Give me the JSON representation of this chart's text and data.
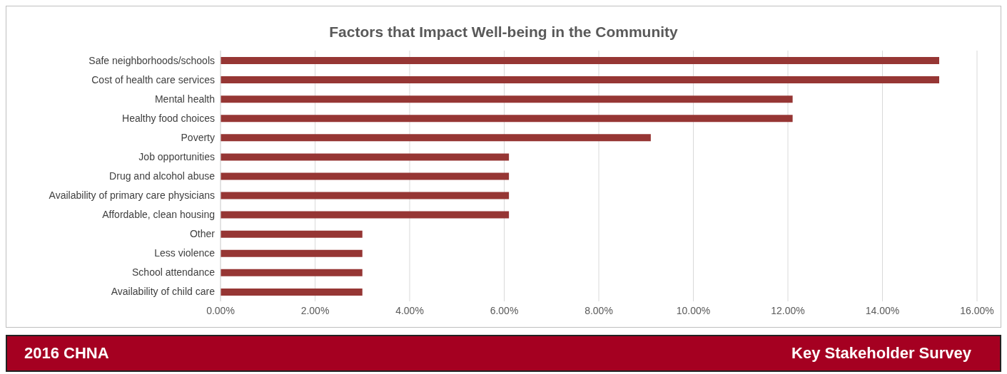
{
  "chart_data": {
    "type": "bar",
    "orientation": "horizontal",
    "title": "Factors that Impact Well-being in the Community",
    "categories": [
      "Safe neighborhoods/schools",
      "Cost of health care services",
      "Mental health",
      "Healthy food choices",
      "Poverty",
      "Job opportunities",
      "Drug and alcohol abuse",
      "Availability of primary care physicians",
      "Affordable, clean housing",
      "Other",
      "Less violence",
      "School attendance",
      "Availability of child care"
    ],
    "values": [
      15.2,
      15.2,
      12.1,
      12.1,
      9.1,
      6.1,
      6.1,
      6.1,
      6.1,
      3.0,
      3.0,
      3.0,
      3.0
    ],
    "color": "#963634",
    "xlim": [
      0,
      16
    ],
    "xticks": [
      {
        "value": 0,
        "label": "0.00%"
      },
      {
        "value": 2,
        "label": "2.00%"
      },
      {
        "value": 4,
        "label": "4.00%"
      },
      {
        "value": 6,
        "label": "6.00%"
      },
      {
        "value": 8,
        "label": "8.00%"
      },
      {
        "value": 10,
        "label": "10.00%"
      },
      {
        "value": 12,
        "label": "12.00%"
      },
      {
        "value": 14,
        "label": "14.00%"
      },
      {
        "value": 16,
        "label": "16.00%"
      }
    ],
    "grid": "x",
    "legend": false,
    "annotations": [
      "2016 CHNA",
      "Key Stakeholder Survey"
    ]
  }
}
